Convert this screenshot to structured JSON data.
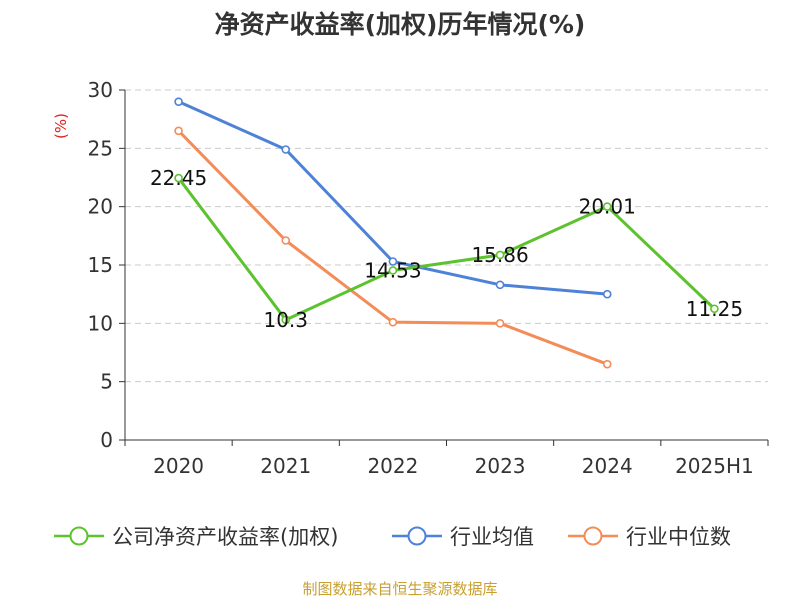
{
  "chart_data": {
    "type": "line",
    "title": "净资产收益率(加权)历年情况(%)",
    "ylabel": "(%)",
    "xlabel": "",
    "categories": [
      "2020",
      "2021",
      "2022",
      "2023",
      "2024",
      "2025H1"
    ],
    "ylim": [
      0,
      30
    ],
    "yticks": [
      0,
      5,
      10,
      15,
      20,
      25,
      30
    ],
    "grid": true,
    "legend_position": "bottom",
    "series": [
      {
        "name": "公司净资产收益率(加权)",
        "color": "#5cc22d",
        "values": [
          22.45,
          10.3,
          14.53,
          15.86,
          20.01,
          11.25
        ],
        "labels": [
          "22.45",
          "10.3",
          "14.53",
          "15.86",
          "20.01",
          "11.25"
        ]
      },
      {
        "name": "行业均值",
        "color": "#4e82d8",
        "values": [
          29.0,
          24.9,
          15.3,
          13.3,
          12.5,
          null
        ]
      },
      {
        "name": "行业中位数",
        "color": "#f38c57",
        "values": [
          26.5,
          17.1,
          10.1,
          10.0,
          6.5,
          null
        ]
      }
    ]
  },
  "footer": {
    "source": "制图数据来自恒生聚源数据库"
  }
}
